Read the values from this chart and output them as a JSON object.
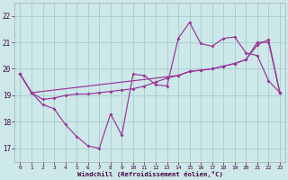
{
  "xlabel": "Windchill (Refroidissement éolien,°C)",
  "bg_color": "#cce8e8",
  "grid_color": "#aacccc",
  "line_color": "#993399",
  "xlim_min": -0.5,
  "xlim_max": 23.5,
  "ylim_min": 16.5,
  "ylim_max": 22.5,
  "yticks": [
    17,
    18,
    19,
    20,
    21,
    22
  ],
  "xticks": [
    0,
    1,
    2,
    3,
    4,
    5,
    6,
    7,
    8,
    9,
    10,
    11,
    12,
    13,
    14,
    15,
    16,
    17,
    18,
    19,
    20,
    21,
    22,
    23
  ],
  "line1_x": [
    0,
    1,
    2,
    3,
    4,
    5,
    6,
    7,
    8,
    9,
    10,
    11,
    12,
    13,
    14,
    15,
    16,
    17,
    18,
    19,
    20,
    21,
    22,
    23
  ],
  "line1_y": [
    19.8,
    19.1,
    18.65,
    18.5,
    17.9,
    17.45,
    17.1,
    17.0,
    18.3,
    17.5,
    19.8,
    19.75,
    19.4,
    19.35,
    21.15,
    21.75,
    20.95,
    20.85,
    21.15,
    21.2,
    20.6,
    20.5,
    19.55,
    19.1
  ],
  "line2_x": [
    0,
    1,
    2,
    3,
    4,
    5,
    6,
    7,
    8,
    9,
    10,
    11,
    12,
    13,
    14,
    15,
    16,
    17,
    18,
    19,
    20,
    21,
    22,
    23
  ],
  "line2_y": [
    19.8,
    19.1,
    18.85,
    18.9,
    19.0,
    19.05,
    19.05,
    19.1,
    19.15,
    19.2,
    19.25,
    19.35,
    19.5,
    19.65,
    19.75,
    19.9,
    19.95,
    20.0,
    20.1,
    20.2,
    20.35,
    21.0,
    21.0,
    19.1
  ],
  "line3_x": [
    0,
    1,
    14,
    15,
    16,
    17,
    18,
    19,
    20,
    21,
    22,
    23
  ],
  "line3_y": [
    19.8,
    19.1,
    19.75,
    19.9,
    19.95,
    20.0,
    20.1,
    20.2,
    20.35,
    20.9,
    21.1,
    19.1
  ]
}
